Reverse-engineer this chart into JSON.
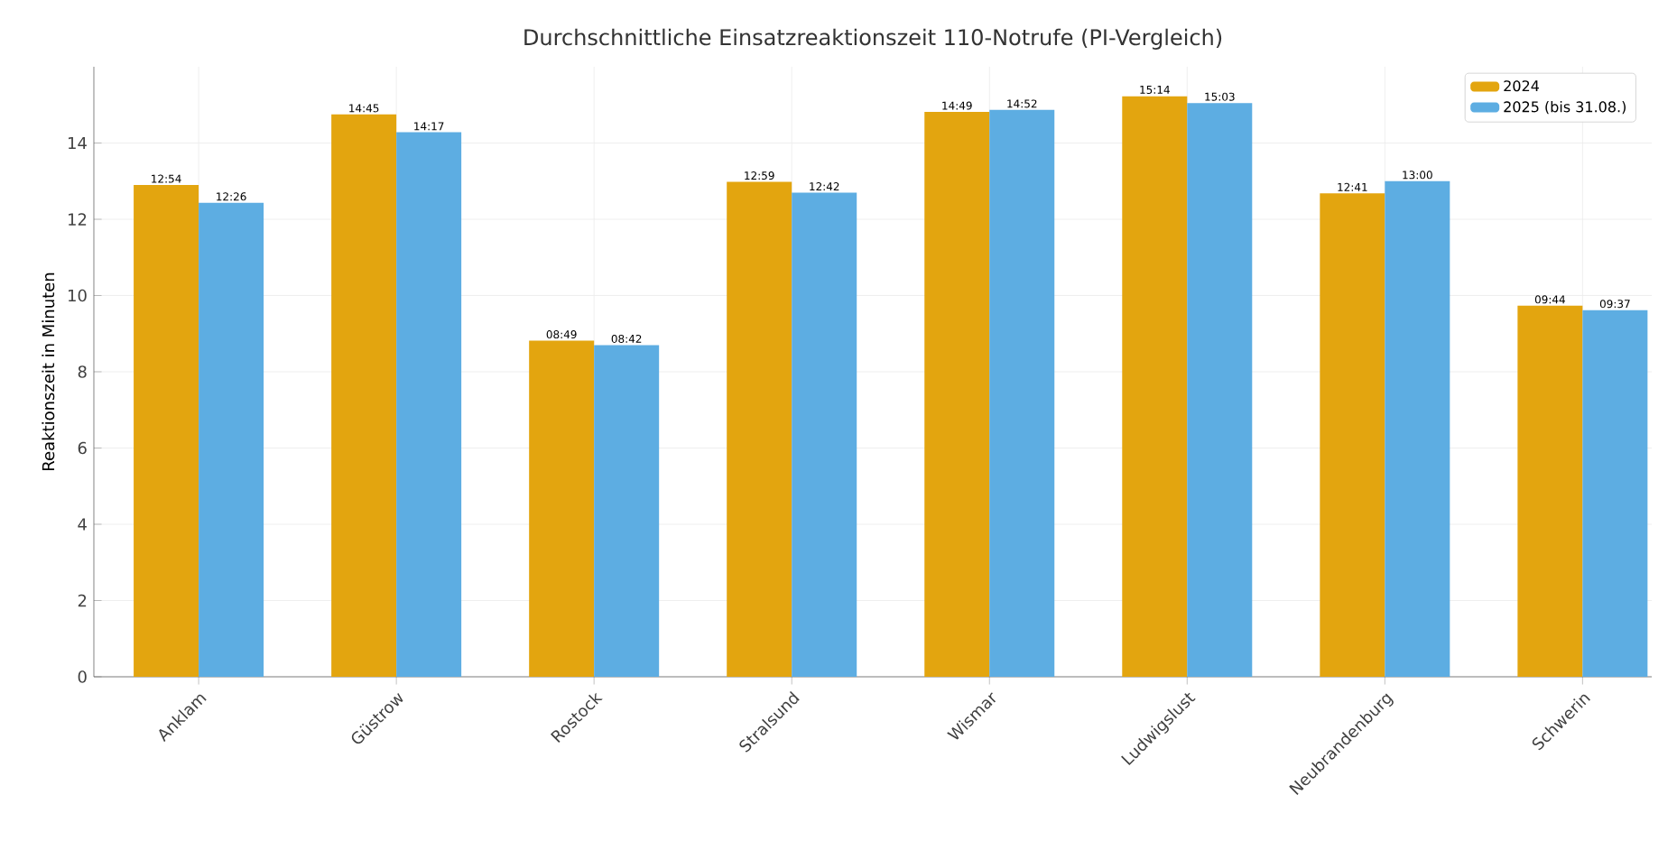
{
  "chart_data": {
    "type": "bar",
    "title": "Durchschnittliche Einsatzreaktionszeit 110-Notrufe (PI-Vergleich)",
    "ylabel": "Reaktionszeit in Minuten",
    "categories": [
      "Anklam",
      "Güstrow",
      "Rostock",
      "Stralsund",
      "Wismar",
      "Ludwigslust",
      "Neubrandenburg",
      "Schwerin"
    ],
    "series": [
      {
        "name": "2024",
        "color": "#e3a50f",
        "values": [
          12.9,
          14.75,
          8.817,
          12.983,
          14.817,
          15.233,
          12.683,
          9.733
        ],
        "value_labels": [
          "12:54",
          "14:45",
          "08:49",
          "12:59",
          "14:49",
          "15:14",
          "12:41",
          "09:44"
        ]
      },
      {
        "name": "2025 (bis 31.08.)",
        "color": "#5dade2",
        "values": [
          12.433,
          14.283,
          8.7,
          12.7,
          14.867,
          15.05,
          13.0,
          9.617
        ],
        "value_labels": [
          "12:26",
          "14:17",
          "08:42",
          "12:42",
          "14:52",
          "15:03",
          "13:00",
          "09:37"
        ]
      }
    ],
    "ylim": [
      0,
      16
    ],
    "yticks": [
      0,
      2,
      4,
      6,
      8,
      10,
      12,
      14
    ],
    "grid": true,
    "legend": "top right"
  }
}
